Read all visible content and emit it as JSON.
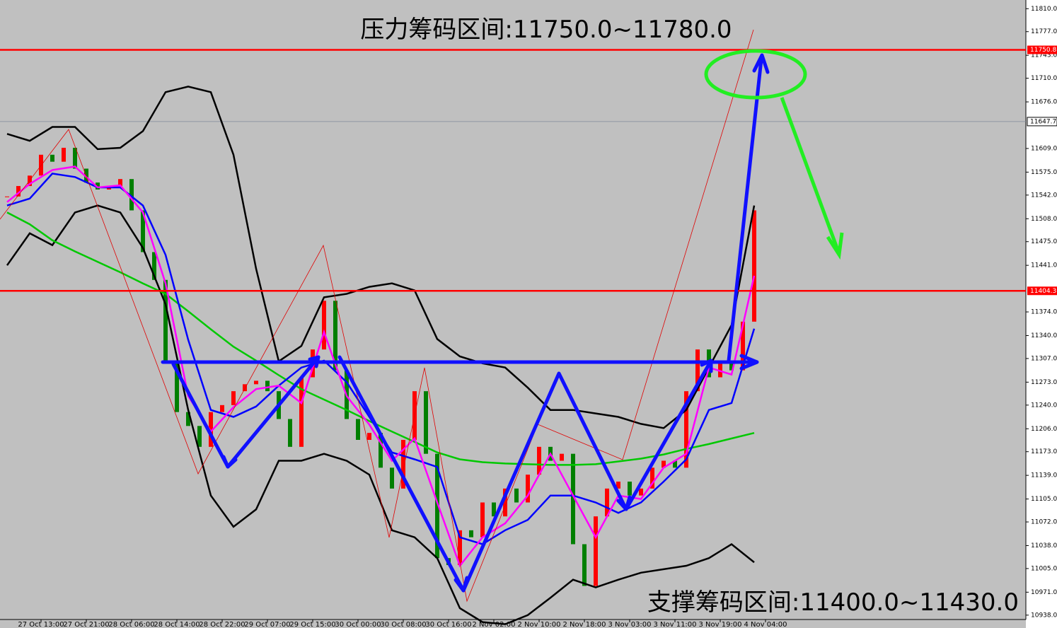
{
  "chart_data": {
    "type": "candlestick",
    "title": "压力筹码区间:11750.0~11780.0",
    "subtitle": "支撑筹码区间:11400.0~11430.0",
    "up_color": "#ff0000",
    "down_color": "#007f00",
    "xlim": [
      -0.625,
      90
    ],
    "ylim": [
      10919.5,
      11822.5
    ],
    "close": [
      11540,
      11555,
      11570,
      11600,
      11590,
      11610,
      11580,
      11560,
      11550,
      11555,
      11565,
      11520,
      11460,
      11420,
      11300,
      11230,
      11210,
      11180,
      11230,
      11240,
      11260,
      11270,
      11275,
      11260,
      11220,
      11180,
      11280,
      11320,
      11390,
      11290,
      11220,
      11190,
      11200,
      11150,
      11120,
      11190,
      11260,
      11170,
      11020,
      11010,
      11060,
      11050,
      11100,
      11080,
      11120,
      11100,
      11140,
      11180,
      11160,
      11170,
      11040,
      10980,
      11080,
      11120,
      11130,
      11110,
      11120,
      11150,
      11160,
      11150,
      11260,
      11320,
      11280,
      11300,
      11290,
      11360,
      11520
    ],
    "overlay_x": [
      0,
      2,
      4,
      6,
      8,
      10,
      12,
      14,
      16,
      18,
      20,
      22,
      24,
      26,
      28,
      30,
      32,
      34,
      36,
      38,
      40,
      42,
      44,
      46,
      48,
      50,
      52,
      54,
      56,
      58,
      60,
      62,
      64,
      66
    ],
    "overlays": [
      {
        "color": "#000000",
        "values": [
          11630,
          11620,
          11640,
          11640,
          11608,
          11610,
          11634,
          11690,
          11698,
          11690,
          11600,
          11436,
          11303,
          11325,
          11395,
          11400,
          11410,
          11415,
          11405,
          11335,
          11310,
          11300,
          11294,
          11265,
          11233,
          11233,
          11228,
          11223,
          11213,
          11207,
          11233,
          11294,
          11355,
          11527
        ]
      },
      {
        "color": "#000000",
        "values": [
          11441,
          11487,
          11470,
          11517,
          11527,
          11517,
          11466,
          11385,
          11233,
          11110,
          11065,
          11090,
          11160,
          11160,
          11170,
          11160,
          11140,
          11060,
          11050,
          11020,
          10948,
          10928,
          10925,
          10938,
          10963,
          10989,
          10978,
          10989,
          10999,
          11004,
          11009,
          11020,
          11040,
          11014
        ]
      },
      {
        "color": "#00c800",
        "values": [
          11517,
          11500,
          11477,
          11461,
          11446,
          11431,
          11415,
          11400,
          11375,
          11349,
          11324,
          11304,
          11283,
          11263,
          11248,
          11233,
          11217,
          11202,
          11187,
          11172,
          11162,
          11158,
          11156,
          11155,
          11154,
          11154,
          11155,
          11159,
          11163,
          11169,
          11177,
          11184,
          11192,
          11200
        ]
      },
      {
        "color": "#0000ff",
        "values": [
          11527,
          11537,
          11573,
          11568,
          11553,
          11553,
          11527,
          11456,
          11334,
          11233,
          11223,
          11238,
          11268,
          11294,
          11304,
          11273,
          11223,
          11172,
          11162,
          11151,
          11050,
          11040,
          11060,
          11075,
          11110,
          11110,
          11100,
          11085,
          11100,
          11130,
          11162,
          11233,
          11243,
          11350
        ]
      },
      {
        "color": "#ff00ff",
        "values": [
          11532,
          11558,
          11578,
          11583,
          11553,
          11556,
          11517,
          11415,
          11253,
          11202,
          11237,
          11263,
          11268,
          11243,
          11345,
          11253,
          11212,
          11160,
          11192,
          11100,
          11009,
          11050,
          11070,
          11110,
          11170,
          11110,
          11050,
          11110,
          11105,
          11150,
          11170,
          11294,
          11284,
          11426
        ]
      }
    ],
    "price_lines": [
      11750.8,
      11404.3
    ],
    "price_line_color": "#ff0000",
    "current_price": 11647.7,
    "yticks": [
      {
        "value": 11810,
        "label": "11810.0"
      },
      {
        "value": 11777,
        "label": "11777.0"
      },
      {
        "value": 11743,
        "label": "11743.0"
      },
      {
        "value": 11710,
        "label": "11710.0"
      },
      {
        "value": 11676,
        "label": "11676.0"
      },
      {
        "value": 11609,
        "label": "11609.0"
      },
      {
        "value": 11575,
        "label": "11575.0"
      },
      {
        "value": 11542,
        "label": "11542.0"
      },
      {
        "value": 11508,
        "label": "11508.0"
      },
      {
        "value": 11475,
        "label": "11475.0"
      },
      {
        "value": 11441,
        "label": "11441.0"
      },
      {
        "value": 11374,
        "label": "11374.0"
      },
      {
        "value": 11340,
        "label": "11340.0"
      },
      {
        "value": 11307,
        "label": "11307.0"
      },
      {
        "value": 11273,
        "label": "11273.0"
      },
      {
        "value": 11240,
        "label": "11240.0"
      },
      {
        "value": 11206,
        "label": "11206.0"
      },
      {
        "value": 11173,
        "label": "11173.0"
      },
      {
        "value": 11139,
        "label": "11139.0"
      },
      {
        "value": 11105,
        "label": "11105.0"
      },
      {
        "value": 11072,
        "label": "11072.0"
      },
      {
        "value": 11038,
        "label": "11038.0"
      },
      {
        "value": 11005,
        "label": "11005.0"
      },
      {
        "value": 10971,
        "label": "10971.0"
      },
      {
        "value": 10938,
        "label": "10938.0"
      }
    ],
    "xticks": [
      {
        "value": 3,
        "label": "27 Oct 13:00"
      },
      {
        "value": 7,
        "label": "27 Oct 21:00"
      },
      {
        "value": 11,
        "label": "28 Oct 06:00"
      },
      {
        "value": 15,
        "label": "28 Oct 14:00"
      },
      {
        "value": 19,
        "label": "28 Oct 22:00"
      },
      {
        "value": 23,
        "label": "29 Oct 07:00"
      },
      {
        "value": 27,
        "label": "29 Oct 15:00"
      },
      {
        "value": 31,
        "label": "30 Oct 00:00"
      },
      {
        "value": 35,
        "label": "30 Oct 08:00"
      },
      {
        "value": 39,
        "label": "30 Oct 16:00"
      },
      {
        "value": 43,
        "label": "2 Nov 02:00"
      },
      {
        "value": 47,
        "label": "2 Nov 10:00"
      },
      {
        "value": 51,
        "label": "2 Nov 18:00"
      },
      {
        "value": 55,
        "label": "3 Nov 03:00"
      },
      {
        "value": 59,
        "label": "3 Nov 11:00"
      },
      {
        "value": 63,
        "label": "3 Nov 19:00"
      },
      {
        "value": 67,
        "label": "4 Nov 04:00"
      }
    ]
  }
}
